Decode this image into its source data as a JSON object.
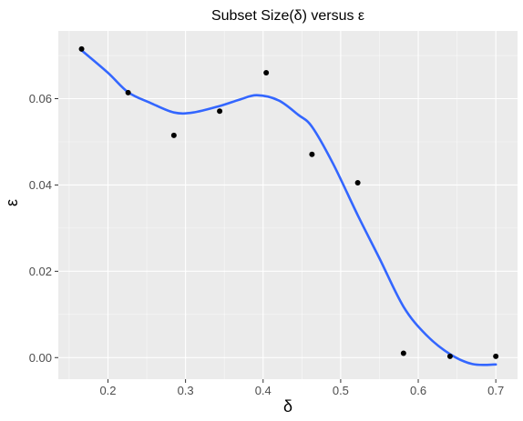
{
  "chart_data": {
    "type": "scatter",
    "title": "Subset Size(δ) versus ε",
    "xlabel": "δ",
    "ylabel": "ε",
    "xlim": [
      0.136,
      0.728
    ],
    "ylim": [
      -0.005,
      0.0757
    ],
    "x_ticks": [
      {
        "value": 0.2,
        "label": "0.2"
      },
      {
        "value": 0.3,
        "label": "0.3"
      },
      {
        "value": 0.4,
        "label": "0.4"
      },
      {
        "value": 0.5,
        "label": "0.5"
      },
      {
        "value": 0.6,
        "label": "0.6"
      },
      {
        "value": 0.7,
        "label": "0.7"
      }
    ],
    "y_ticks": [
      {
        "value": 0.0,
        "label": "0.00"
      },
      {
        "value": 0.02,
        "label": "0.02"
      },
      {
        "value": 0.04,
        "label": "0.04"
      },
      {
        "value": 0.06,
        "label": "0.06"
      }
    ],
    "grid": true,
    "series": [
      {
        "kind": "points",
        "color": "#000000",
        "points": [
          {
            "x": 0.166,
            "y": 0.0715
          },
          {
            "x": 0.226,
            "y": 0.0614
          },
          {
            "x": 0.285,
            "y": 0.0515
          },
          {
            "x": 0.344,
            "y": 0.0571
          },
          {
            "x": 0.404,
            "y": 0.066
          },
          {
            "x": 0.463,
            "y": 0.0471
          },
          {
            "x": 0.522,
            "y": 0.0405
          },
          {
            "x": 0.581,
            "y": 0.001
          },
          {
            "x": 0.641,
            "y": 0.0003
          },
          {
            "x": 0.7,
            "y": 0.0003
          }
        ]
      },
      {
        "kind": "smooth",
        "color": "#3366ff",
        "points": [
          {
            "x": 0.166,
            "y": 0.0712
          },
          {
            "x": 0.2,
            "y": 0.066
          },
          {
            "x": 0.226,
            "y": 0.0615
          },
          {
            "x": 0.255,
            "y": 0.059
          },
          {
            "x": 0.285,
            "y": 0.0568
          },
          {
            "x": 0.31,
            "y": 0.0568
          },
          {
            "x": 0.344,
            "y": 0.0583
          },
          {
            "x": 0.37,
            "y": 0.0598
          },
          {
            "x": 0.392,
            "y": 0.0608
          },
          {
            "x": 0.42,
            "y": 0.0596
          },
          {
            "x": 0.445,
            "y": 0.0563
          },
          {
            "x": 0.463,
            "y": 0.0535
          },
          {
            "x": 0.49,
            "y": 0.045
          },
          {
            "x": 0.522,
            "y": 0.033
          },
          {
            "x": 0.55,
            "y": 0.023
          },
          {
            "x": 0.581,
            "y": 0.0118
          },
          {
            "x": 0.61,
            "y": 0.0053
          },
          {
            "x": 0.641,
            "y": 0.0008
          },
          {
            "x": 0.67,
            "y": -0.0015
          },
          {
            "x": 0.7,
            "y": -0.0016
          }
        ]
      }
    ]
  },
  "colors": {
    "panel_background": "#ebebeb",
    "grid_major": "#ffffff",
    "tick_mark": "#333333"
  }
}
